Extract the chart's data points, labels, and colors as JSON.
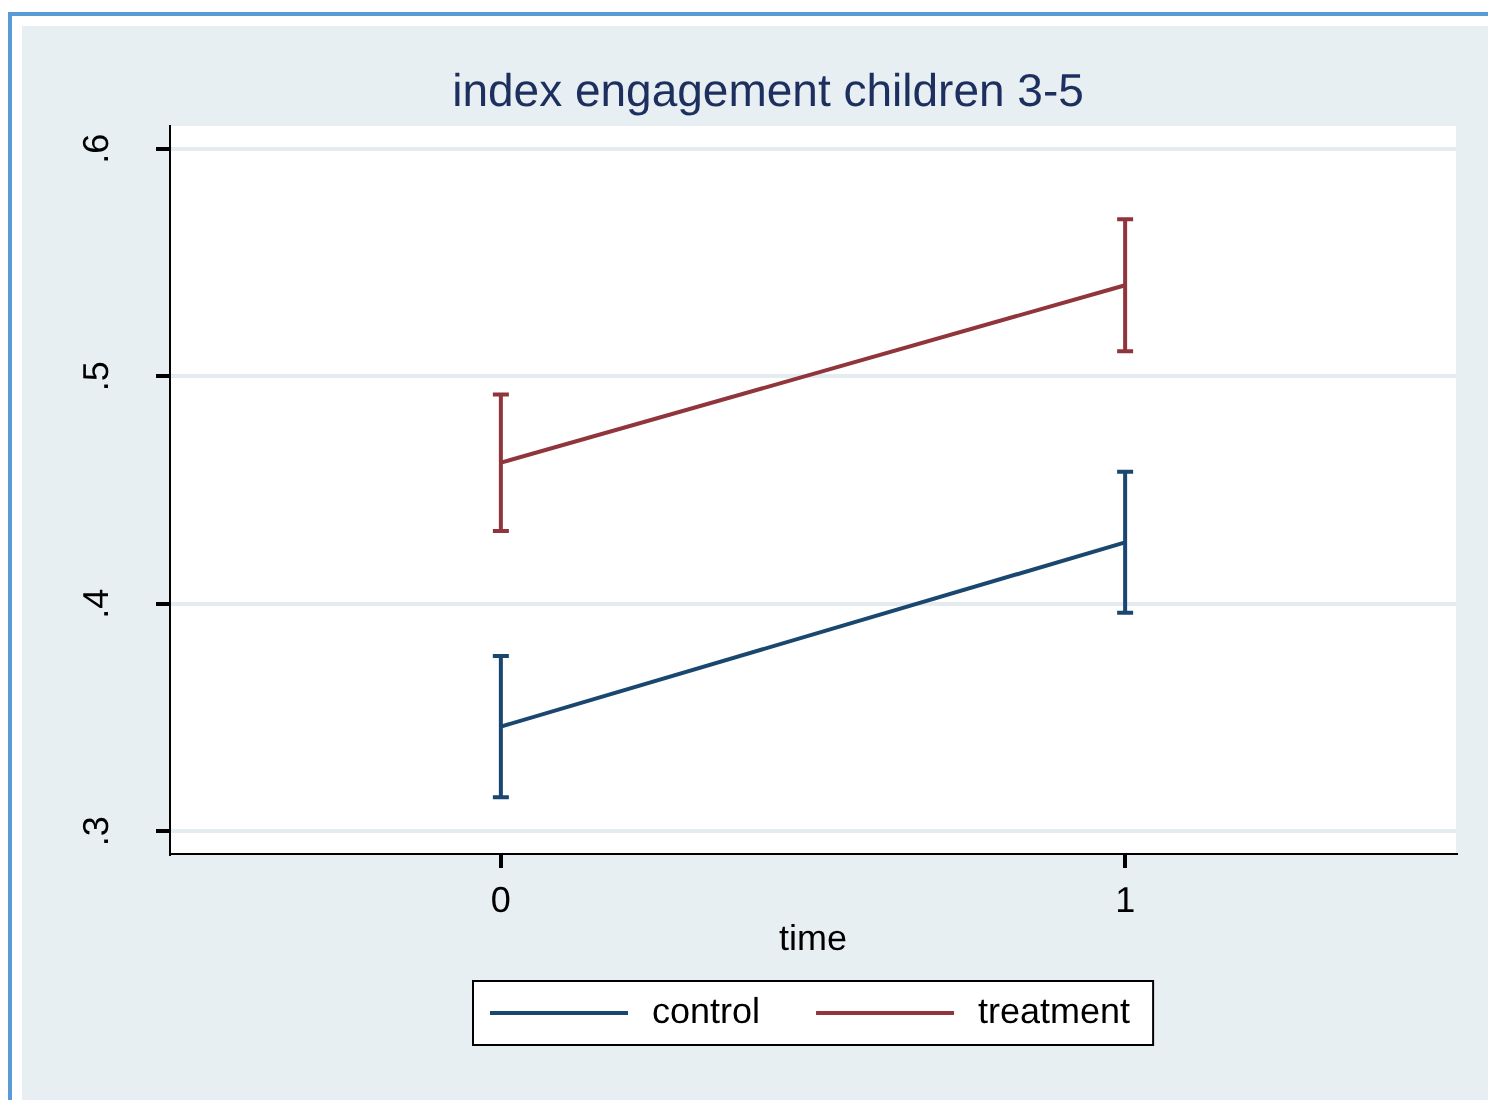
{
  "chart_data": {
    "type": "line",
    "title": "index engagement children 3-5",
    "xlabel": "time",
    "x": [
      0,
      1
    ],
    "xlim": [
      -0.53,
      1.53
    ],
    "xticks": [
      0,
      1
    ],
    "ylim": [
      0.29,
      0.61
    ],
    "yticks": [
      {
        "value": 0.3,
        "label": ".3"
      },
      {
        "value": 0.4,
        "label": ".4"
      },
      {
        "value": 0.5,
        "label": ".5"
      },
      {
        "value": 0.6,
        "label": ".6"
      }
    ],
    "series": [
      {
        "name": "control",
        "color": "#1a476f",
        "values": [
          0.346,
          0.427
        ],
        "errors": [
          0.031,
          0.031
        ]
      },
      {
        "name": "treatment",
        "color": "#90353b",
        "values": [
          0.462,
          0.54
        ],
        "errors": [
          0.03,
          0.029
        ]
      }
    ],
    "grid": "y",
    "legend": "bottom"
  }
}
